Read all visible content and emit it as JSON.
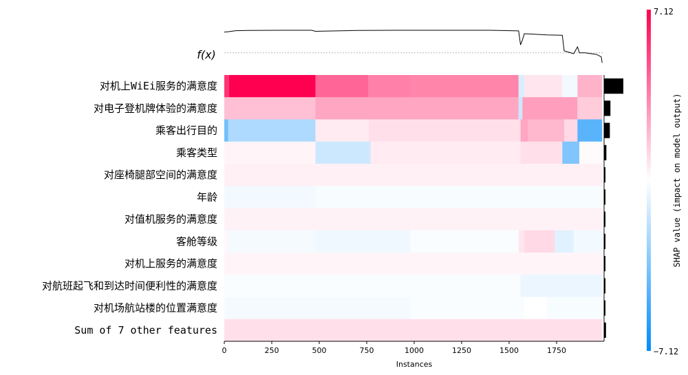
{
  "chart_data": {
    "type": "heatmap",
    "fx_label": "f(x)",
    "xlabel": "Instances",
    "xlim": [
      0,
      2000
    ],
    "x_ticks": [
      "0",
      "250",
      "500",
      "750",
      "1000",
      "1250",
      "1500",
      "1750"
    ],
    "colorbar": {
      "label": "SHAP value (impact on model output)",
      "max_label": "7.12",
      "min_label": "−7.12",
      "max": 7.12,
      "min": -7.12,
      "high_color": "#ff0051",
      "low_color": "#008bfb"
    },
    "features": [
      {
        "label": "对机上WiEi服务的满意度",
        "importance": 1.0,
        "segments": [
          [
            0,
            25,
            0.8
          ],
          [
            25,
            480,
            1.0
          ],
          [
            480,
            760,
            0.6
          ],
          [
            760,
            980,
            0.5
          ],
          [
            980,
            1550,
            0.48
          ],
          [
            1550,
            1580,
            -0.15
          ],
          [
            1580,
            1780,
            0.1
          ],
          [
            1780,
            1860,
            -0.05
          ],
          [
            1860,
            1990,
            0.3
          ]
        ]
      },
      {
        "label": "对电子登机牌体验的满意度",
        "importance": 0.33,
        "segments": [
          [
            0,
            480,
            0.25
          ],
          [
            480,
            1550,
            0.35
          ],
          [
            1550,
            1570,
            -0.2
          ],
          [
            1570,
            1860,
            0.38
          ],
          [
            1860,
            1990,
            0.2
          ]
        ]
      },
      {
        "label": "乘客出行目的",
        "importance": 0.3,
        "segments": [
          [
            0,
            20,
            -0.55
          ],
          [
            20,
            480,
            -0.32
          ],
          [
            480,
            760,
            0.08
          ],
          [
            760,
            1560,
            0.12
          ],
          [
            1560,
            1600,
            0.35
          ],
          [
            1600,
            1790,
            0.28
          ],
          [
            1790,
            1860,
            0.15
          ],
          [
            1860,
            1990,
            -0.65
          ]
        ]
      },
      {
        "label": "乘客类型",
        "importance": 0.12,
        "segments": [
          [
            0,
            480,
            0.04
          ],
          [
            480,
            770,
            -0.2
          ],
          [
            770,
            1560,
            0.08
          ],
          [
            1560,
            1780,
            0.12
          ],
          [
            1780,
            1870,
            -0.5
          ],
          [
            1870,
            1990,
            0.02
          ]
        ]
      },
      {
        "label": "对座椅腿部空间的满意度",
        "importance": 0.06,
        "segments": [
          [
            0,
            1990,
            0.06
          ]
        ]
      },
      {
        "label": "年龄",
        "importance": 0.05,
        "segments": [
          [
            0,
            480,
            -0.05
          ],
          [
            480,
            1990,
            -0.03
          ]
        ]
      },
      {
        "label": "对值机服务的满意度",
        "importance": 0.05,
        "segments": [
          [
            0,
            1990,
            0.05
          ]
        ]
      },
      {
        "label": "客舱等级",
        "importance": 0.04,
        "segments": [
          [
            0,
            15,
            0.03
          ],
          [
            15,
            480,
            -0.04
          ],
          [
            480,
            980,
            -0.06
          ],
          [
            980,
            1550,
            -0.02
          ],
          [
            1550,
            1580,
            0.1
          ],
          [
            1580,
            1740,
            0.15
          ],
          [
            1740,
            1840,
            -0.12
          ],
          [
            1840,
            1990,
            -0.05
          ]
        ]
      },
      {
        "label": "对机上服务的满意度",
        "importance": 0.04,
        "segments": [
          [
            0,
            1990,
            0.04
          ]
        ]
      },
      {
        "label": "对航班起飞和到达时间便利性的满意度",
        "importance": 0.03,
        "segments": [
          [
            0,
            1560,
            -0.02
          ],
          [
            1560,
            1990,
            -0.08
          ]
        ]
      },
      {
        "label": "对机场航站楼的位置满意度",
        "importance": 0.03,
        "segments": [
          [
            0,
            980,
            -0.04
          ],
          [
            980,
            1580,
            -0.02
          ],
          [
            1580,
            1700,
            0.0
          ],
          [
            1700,
            1990,
            -0.03
          ]
        ]
      },
      {
        "label": "Sum of 7 other features",
        "importance": 0.1,
        "segments": [
          [
            0,
            1990,
            0.12
          ]
        ]
      }
    ],
    "fx_curve": [
      [
        0,
        0.92
      ],
      [
        20,
        0.93
      ],
      [
        60,
        0.955
      ],
      [
        120,
        0.96
      ],
      [
        300,
        0.965
      ],
      [
        460,
        0.965
      ],
      [
        480,
        0.94
      ],
      [
        520,
        0.945
      ],
      [
        700,
        0.96
      ],
      [
        900,
        0.965
      ],
      [
        1200,
        0.965
      ],
      [
        1400,
        0.965
      ],
      [
        1550,
        0.95
      ],
      [
        1560,
        0.6
      ],
      [
        1570,
        0.72
      ],
      [
        1580,
        0.88
      ],
      [
        1620,
        0.87
      ],
      [
        1700,
        0.85
      ],
      [
        1780,
        0.84
      ],
      [
        1790,
        0.45
      ],
      [
        1810,
        0.42
      ],
      [
        1840,
        0.38
      ],
      [
        1860,
        0.55
      ],
      [
        1870,
        0.4
      ],
      [
        1900,
        0.4
      ],
      [
        1960,
        0.36
      ],
      [
        1985,
        0.3
      ],
      [
        1990,
        0.15
      ]
    ]
  }
}
